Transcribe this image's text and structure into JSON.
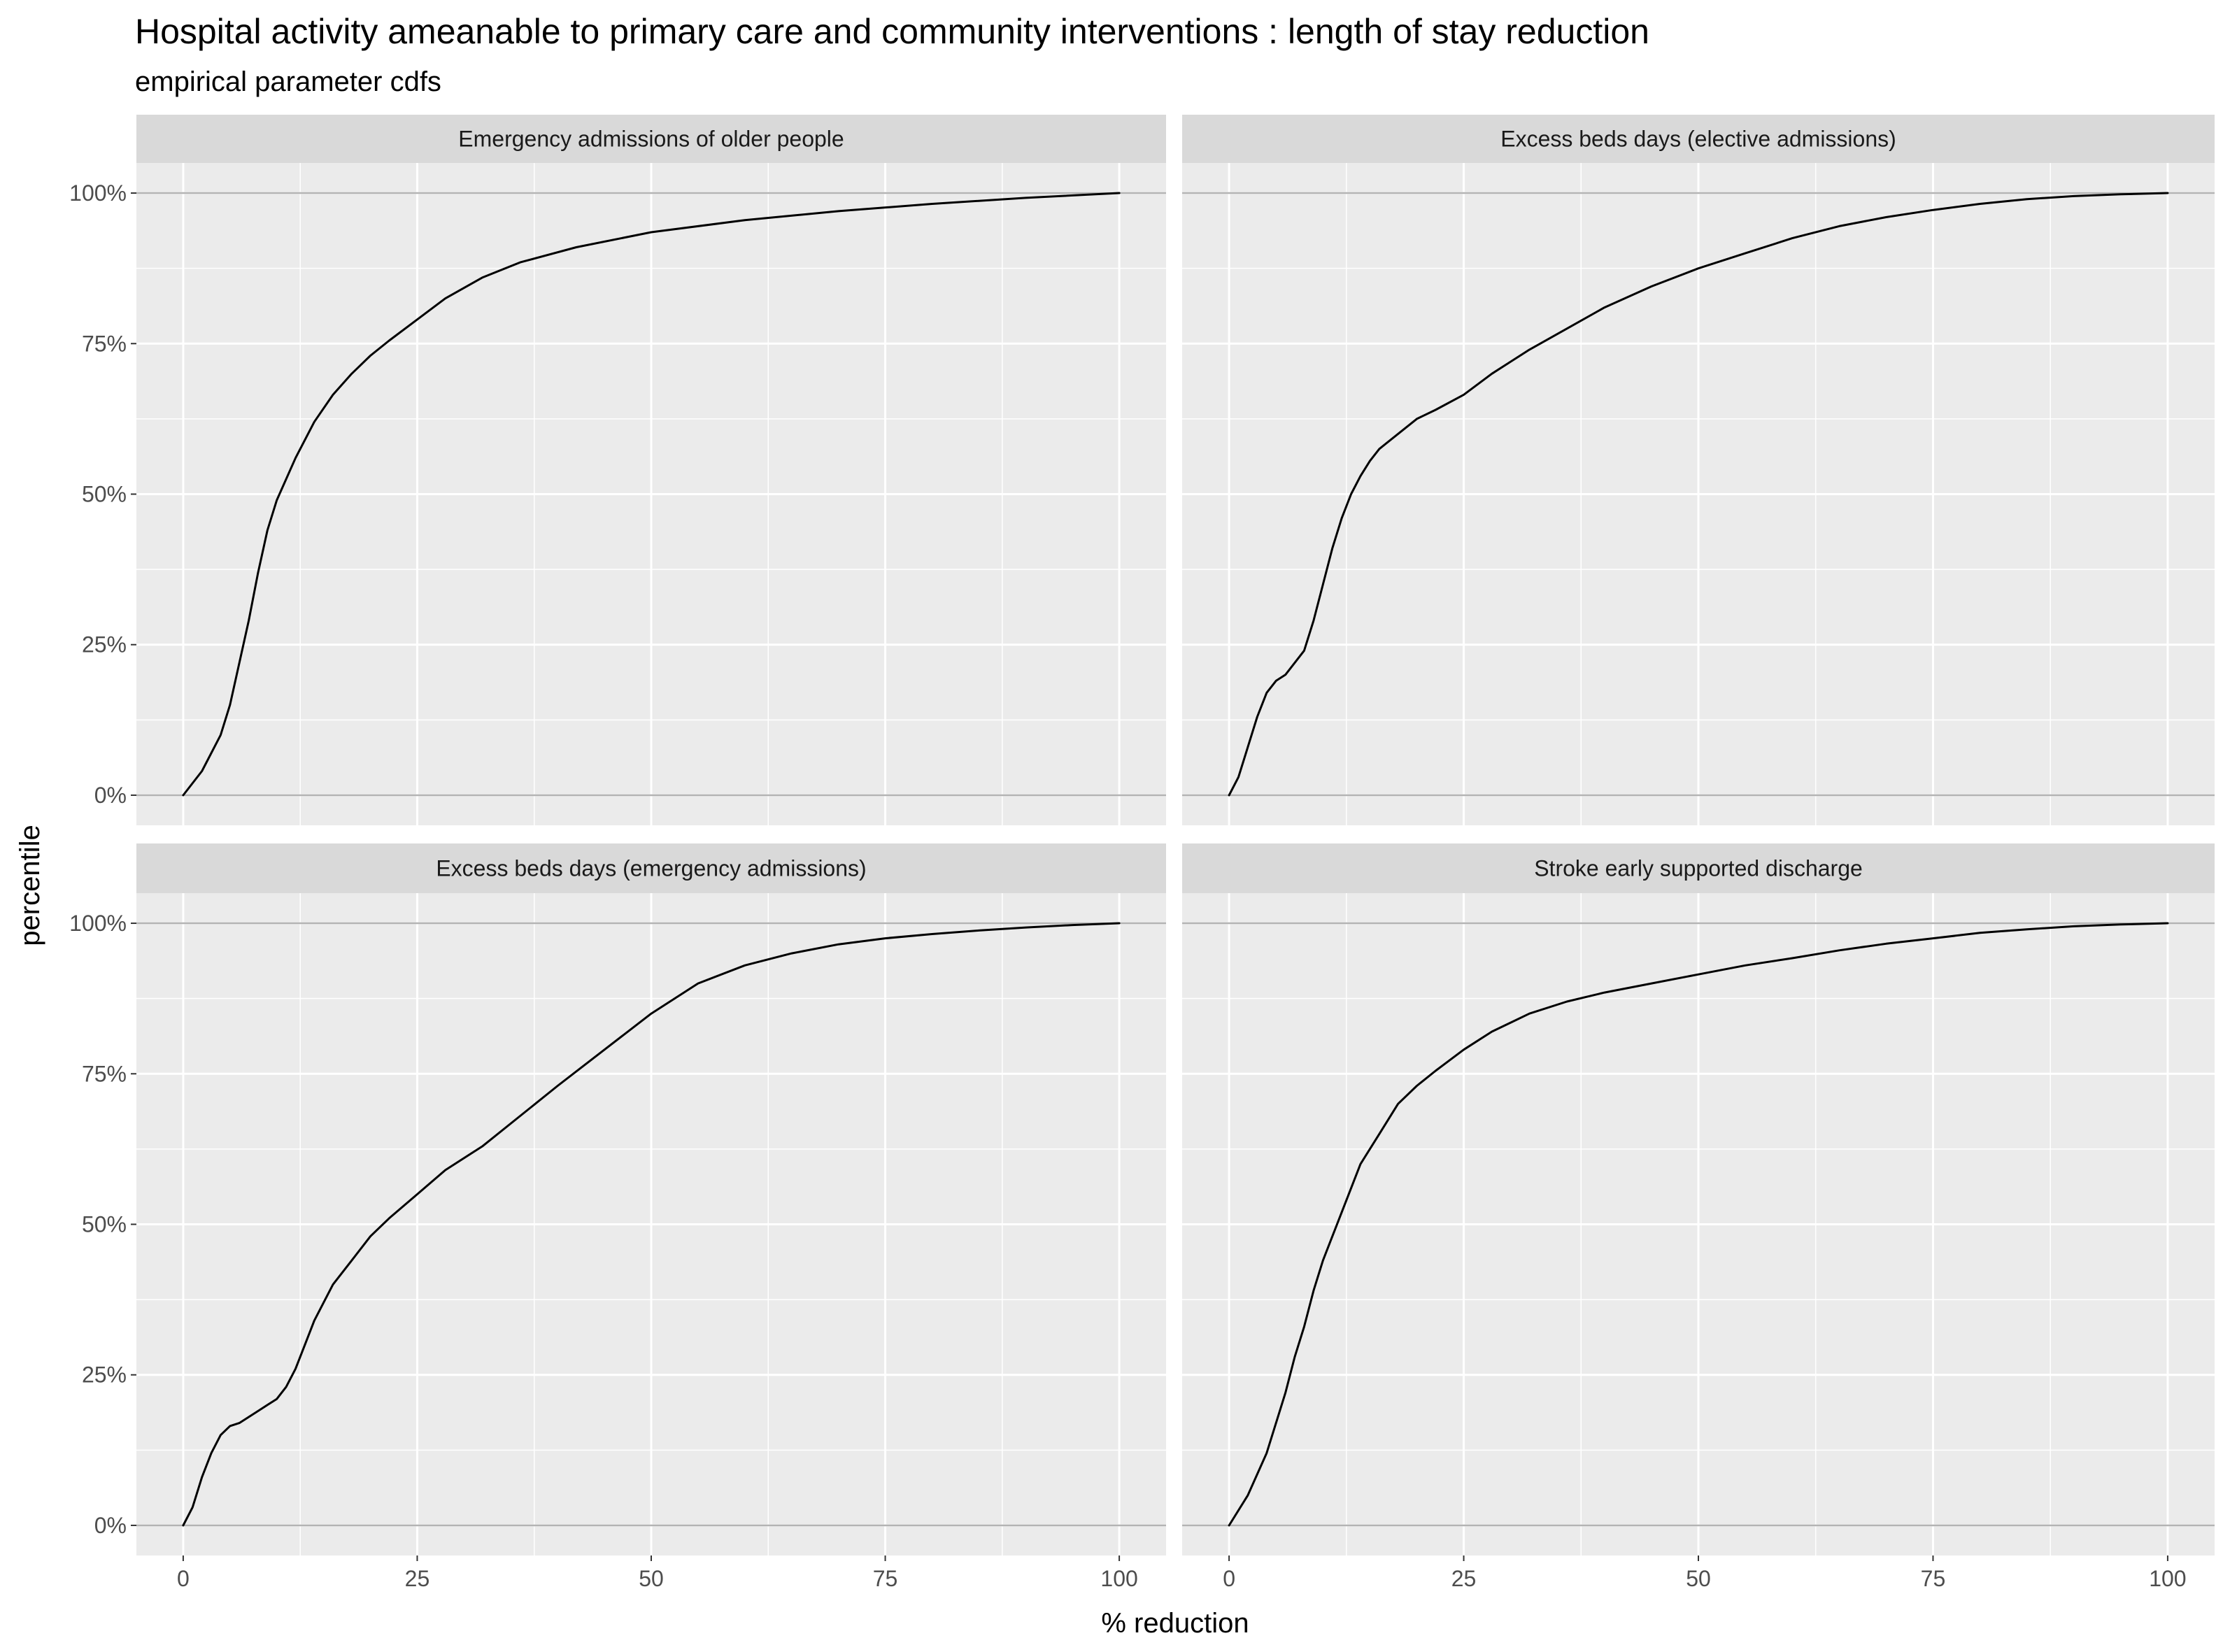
{
  "chart_data": {
    "type": "line",
    "title": "Hospital activity ameanable to primary care and community interventions : length of stay reduction",
    "subtitle": "empirical parameter cdfs",
    "xlabel": "% reduction",
    "ylabel": "percentile",
    "xlim": [
      0,
      100
    ],
    "ylim": [
      0,
      1
    ],
    "x_ticks": [
      "0",
      "25",
      "50",
      "75",
      "100"
    ],
    "y_ticks": [
      "0%",
      "25%",
      "50%",
      "75%",
      "100%"
    ],
    "grid": true,
    "legend": "none",
    "colors": {
      "panel_bg": "#ebebeb",
      "strip_bg": "#d9d9d9",
      "grid": "#ffffff",
      "line": "#000000",
      "ref_line": "#b3b3b3"
    },
    "facets": [
      {
        "label": "Emergency admissions of older people",
        "x": [
          0,
          2,
          4,
          5,
          6,
          7,
          8,
          9,
          10,
          12,
          14,
          16,
          18,
          20,
          22,
          25,
          28,
          32,
          36,
          42,
          50,
          60,
          70,
          80,
          90,
          100
        ],
        "y": [
          0,
          0.04,
          0.1,
          0.15,
          0.22,
          0.29,
          0.37,
          0.44,
          0.49,
          0.56,
          0.62,
          0.665,
          0.7,
          0.73,
          0.755,
          0.79,
          0.825,
          0.86,
          0.885,
          0.91,
          0.935,
          0.955,
          0.97,
          0.982,
          0.992,
          1.0
        ]
      },
      {
        "label": "Excess beds days (elective admissions)",
        "x": [
          0,
          1,
          2,
          3,
          4,
          5,
          6,
          7,
          8,
          9,
          10,
          11,
          12,
          13,
          14,
          15,
          16,
          18,
          20,
          22,
          25,
          28,
          32,
          36,
          40,
          45,
          50,
          55,
          60,
          65,
          70,
          75,
          80,
          85,
          90,
          95,
          100
        ],
        "y": [
          0,
          0.03,
          0.08,
          0.13,
          0.17,
          0.19,
          0.2,
          0.22,
          0.24,
          0.29,
          0.35,
          0.41,
          0.46,
          0.5,
          0.53,
          0.555,
          0.575,
          0.6,
          0.625,
          0.64,
          0.665,
          0.7,
          0.74,
          0.775,
          0.81,
          0.845,
          0.875,
          0.9,
          0.925,
          0.945,
          0.96,
          0.972,
          0.982,
          0.99,
          0.995,
          0.998,
          1.0
        ]
      },
      {
        "label": "Excess beds days (emergency admissions)",
        "x": [
          0,
          1,
          2,
          3,
          4,
          5,
          6,
          7,
          8,
          9,
          10,
          11,
          12,
          13,
          14,
          15,
          16,
          18,
          20,
          22,
          25,
          28,
          32,
          36,
          40,
          45,
          50,
          55,
          60,
          65,
          70,
          75,
          80,
          85,
          90,
          95,
          100
        ],
        "y": [
          0,
          0.03,
          0.08,
          0.12,
          0.15,
          0.165,
          0.17,
          0.18,
          0.19,
          0.2,
          0.21,
          0.23,
          0.26,
          0.3,
          0.34,
          0.37,
          0.4,
          0.44,
          0.48,
          0.51,
          0.55,
          0.59,
          0.63,
          0.68,
          0.73,
          0.79,
          0.85,
          0.9,
          0.93,
          0.95,
          0.965,
          0.975,
          0.982,
          0.988,
          0.993,
          0.997,
          1.0
        ]
      },
      {
        "label": "Stroke early supported discharge",
        "x": [
          0,
          2,
          4,
          5,
          6,
          7,
          8,
          9,
          10,
          12,
          14,
          16,
          18,
          20,
          22,
          25,
          28,
          32,
          36,
          40,
          45,
          50,
          55,
          60,
          65,
          70,
          75,
          80,
          85,
          90,
          95,
          100
        ],
        "y": [
          0,
          0.05,
          0.12,
          0.17,
          0.22,
          0.28,
          0.33,
          0.39,
          0.44,
          0.52,
          0.6,
          0.65,
          0.7,
          0.73,
          0.755,
          0.79,
          0.82,
          0.85,
          0.87,
          0.885,
          0.9,
          0.915,
          0.93,
          0.942,
          0.955,
          0.966,
          0.975,
          0.984,
          0.99,
          0.995,
          0.998,
          1.0
        ]
      }
    ]
  }
}
